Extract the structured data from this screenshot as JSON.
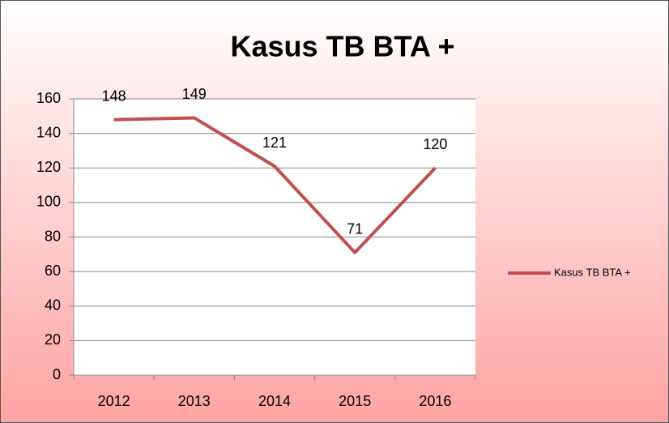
{
  "chart_data": {
    "type": "line",
    "title": "Kasus TB BTA +",
    "categories": [
      "2012",
      "2013",
      "2014",
      "2015",
      "2016"
    ],
    "series": [
      {
        "name": "Kasus TB BTA +",
        "color": "#c0504d",
        "values": [
          148,
          149,
          121,
          71,
          120
        ]
      }
    ],
    "ylim": [
      0,
      160
    ],
    "yticks": [
      0,
      20,
      40,
      60,
      80,
      100,
      120,
      140,
      160
    ],
    "grid": true,
    "legend": "right"
  }
}
